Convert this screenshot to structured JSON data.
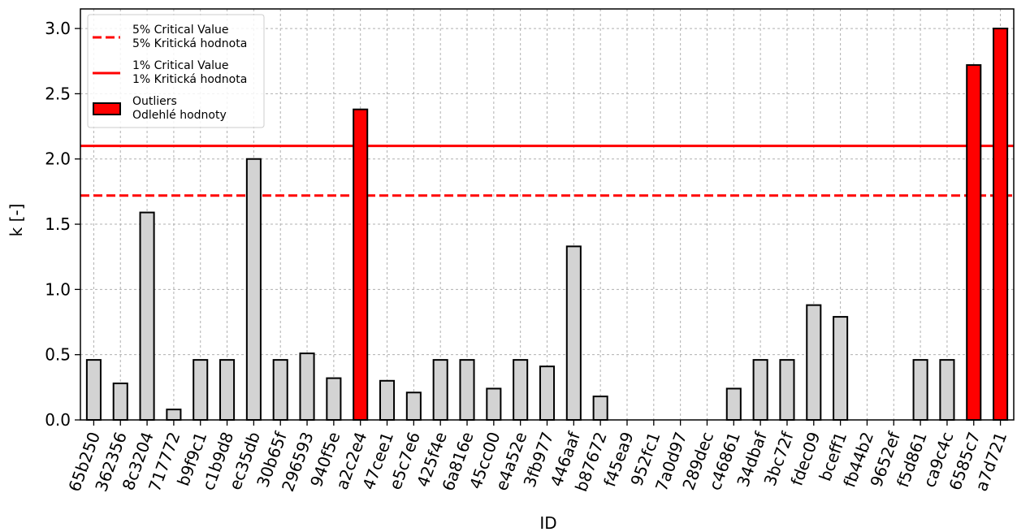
{
  "chart_data": {
    "type": "bar",
    "xlabel": "ID",
    "ylabel": "k [-]",
    "ylim": [
      0,
      3.15
    ],
    "yticks": [
      "0.0",
      "0.5",
      "1.0",
      "1.5",
      "2.0",
      "2.5",
      "3.0"
    ],
    "grid": true,
    "legend_position": "top-left",
    "categories": [
      "65b250",
      "362356",
      "8c3204",
      "717772",
      "b9f9c1",
      "c1b9d8",
      "ec35db",
      "30b65f",
      "296593",
      "940f5e",
      "a2c2e4",
      "47cee1",
      "e5c7e6",
      "425f4e",
      "6a816e",
      "45cc00",
      "e4a52e",
      "3fb977",
      "446aaf",
      "b87672",
      "f45ea9",
      "952fc1",
      "7a0d97",
      "289dec",
      "c46861",
      "34dbaf",
      "3bc72f",
      "fdec09",
      "bceff1",
      "fb44b2",
      "9652ef",
      "f5d861",
      "ca9c4c",
      "6585c7",
      "a7d721"
    ],
    "values": [
      0.46,
      0.28,
      1.59,
      0.08,
      0.46,
      0.46,
      2.0,
      0.46,
      0.51,
      0.32,
      2.38,
      0.3,
      0.21,
      0.46,
      0.46,
      0.24,
      0.46,
      0.41,
      1.33,
      0.18,
      0.0,
      0.0,
      0.0,
      0.0,
      0.24,
      0.46,
      0.46,
      0.88,
      0.79,
      0.0,
      0.0,
      0.46,
      0.46,
      2.72,
      3.0
    ],
    "outliers": [
      "a2c2e4",
      "6585c7",
      "a7d721"
    ],
    "critical_values": [
      {
        "level": "5%",
        "value": 1.72,
        "style": "dashed"
      },
      {
        "level": "1%",
        "value": 2.1,
        "style": "solid"
      }
    ],
    "colors": {
      "bar": "#d3d3d3",
      "outlier": "#ff0000",
      "critical_line": "#ff0000",
      "grid": "#b0b0b0",
      "edge": "#000000"
    },
    "legend": [
      {
        "key": "crit5",
        "line1": "5% Critical Value",
        "line2": "5% Kritická hodnota"
      },
      {
        "key": "crit1",
        "line1": "1% Critical Value",
        "line2": "1% Kritická hodnota"
      },
      {
        "key": "outliers",
        "line1": "Outliers",
        "line2": "Odlehlé hodnoty"
      }
    ]
  }
}
